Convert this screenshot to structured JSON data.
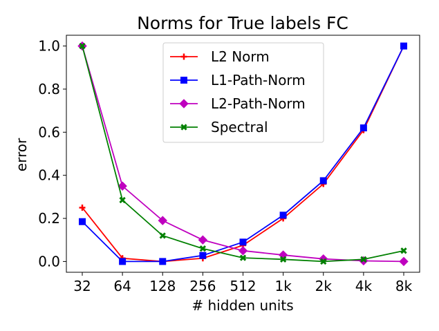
{
  "chart_data": {
    "type": "line",
    "title": "Norms for True labels FC",
    "xlabel": "# hidden units",
    "ylabel": "error",
    "categories": [
      "32",
      "64",
      "128",
      "256",
      "512",
      "1k",
      "2k",
      "4k",
      "8k"
    ],
    "yticks": [
      "0.0",
      "0.2",
      "0.4",
      "0.6",
      "0.8",
      "1.0"
    ],
    "ylim": [
      -0.05,
      1.05
    ],
    "grid": false,
    "legend_position": "top-center",
    "series": [
      {
        "name": "L2 Norm",
        "color": "#ff0000",
        "marker": "plus",
        "values": [
          0.25,
          0.015,
          0.0,
          0.015,
          0.075,
          0.2,
          0.36,
          0.61,
          1.0
        ]
      },
      {
        "name": "L1-Path-Norm",
        "color": "#0000ff",
        "marker": "square",
        "values": [
          0.185,
          0.0,
          0.0,
          0.028,
          0.09,
          0.215,
          0.375,
          0.62,
          1.0
        ]
      },
      {
        "name": "L2-Path-Norm",
        "color": "#bf00bf",
        "marker": "diamond",
        "values": [
          1.0,
          0.35,
          0.19,
          0.1,
          0.05,
          0.03,
          0.012,
          0.003,
          0.0
        ]
      },
      {
        "name": "Spectral",
        "color": "#008000",
        "marker": "x",
        "values": [
          1.0,
          0.285,
          0.12,
          0.06,
          0.017,
          0.01,
          0.0,
          0.01,
          0.05
        ]
      }
    ]
  }
}
